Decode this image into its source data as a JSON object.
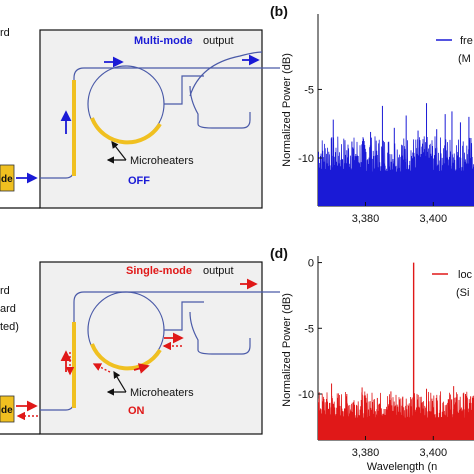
{
  "panels": {
    "b_label": "(b)",
    "d_label": "(d)"
  },
  "top": {
    "mode_word": "Multi-mode",
    "output_word": "output",
    "left_partial_text": "rd",
    "laser_partial": "de",
    "heater_label": "Microheaters",
    "heater_state": "OFF"
  },
  "bottom": {
    "mode_word": "Single-mode",
    "output_word": "output",
    "left_partial_text": [
      "rd",
      "ard",
      "ted)"
    ],
    "laser_partial": "de",
    "heater_label": "Microheaters",
    "heater_state": "ON"
  },
  "colors": {
    "multi": "#1a1ad6",
    "single": "#e01818",
    "heater": "#f0c020",
    "waveguide": "#4a5aa8",
    "chip": "#f0f0f0"
  },
  "chart_data": [
    {
      "panel": "(b)",
      "type": "line",
      "ylabel": "Normalized Power (dB)",
      "y_ticks": [
        "-5",
        "-10"
      ],
      "x_ticks": [
        "3,380",
        "3,400"
      ],
      "x_tick_values": [
        3380,
        3400
      ],
      "legend": [
        "fre",
        "(M"
      ],
      "series": [
        {
          "color": "#1a1ad6"
        }
      ],
      "xlim": [
        3366,
        3412
      ],
      "ylim": [
        -13.5,
        0.5
      ],
      "noise_floor": -13.5,
      "peaks": [
        {
          "x": 3370.5,
          "y": -7.2
        },
        {
          "x": 3376.0,
          "y": -8.8
        },
        {
          "x": 3381.5,
          "y": -8.1
        },
        {
          "x": 3385.0,
          "y": -6.2
        },
        {
          "x": 3388.5,
          "y": -7.8
        },
        {
          "x": 3392.0,
          "y": -6.9
        },
        {
          "x": 3395.5,
          "y": -8.0
        },
        {
          "x": 3398.0,
          "y": -6.0
        },
        {
          "x": 3401.0,
          "y": -7.9
        },
        {
          "x": 3403.5,
          "y": -6.8
        },
        {
          "x": 3405.5,
          "y": -6.6
        },
        {
          "x": 3408.0,
          "y": -7.4
        },
        {
          "x": 3410.5,
          "y": -7.0
        }
      ]
    },
    {
      "panel": "(d)",
      "type": "line",
      "ylabel": "Normalized Power (dB)",
      "xlabel": "Wavelength (n",
      "y_ticks": [
        "0",
        "-5",
        "-10"
      ],
      "x_ticks": [
        "3,380",
        "3,400"
      ],
      "x_tick_values": [
        3380,
        3400
      ],
      "legend": [
        "loc",
        "(Si"
      ],
      "series": [
        {
          "color": "#e01818"
        }
      ],
      "xlim": [
        3366,
        3412
      ],
      "ylim": [
        -13.5,
        0.5
      ],
      "noise_floor": -13.5,
      "main_peak": {
        "x": 3394.2,
        "y": 0
      },
      "peaks": [
        {
          "x": 3370.0,
          "y": -9.2
        },
        {
          "x": 3374.5,
          "y": -10.0
        },
        {
          "x": 3379.0,
          "y": -9.5
        },
        {
          "x": 3383.5,
          "y": -10.3
        },
        {
          "x": 3387.5,
          "y": -9.8
        },
        {
          "x": 3391.0,
          "y": -10.2
        },
        {
          "x": 3398.0,
          "y": -9.6
        },
        {
          "x": 3402.0,
          "y": -10.1
        },
        {
          "x": 3406.0,
          "y": -9.4
        },
        {
          "x": 3409.5,
          "y": -10.0
        }
      ]
    }
  ]
}
